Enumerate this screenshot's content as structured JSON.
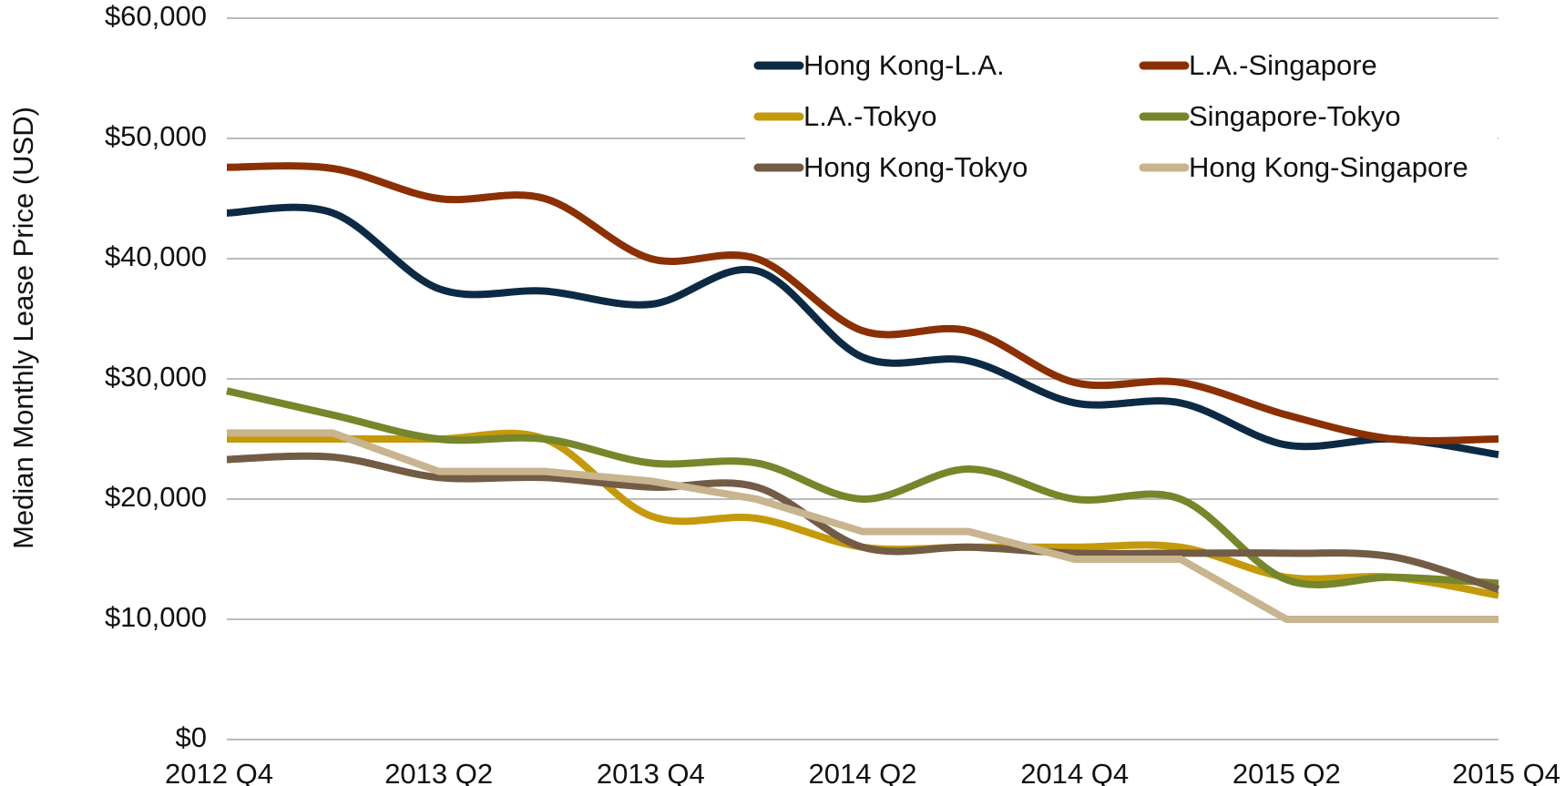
{
  "chart_data": {
    "type": "line",
    "y_label": "Median Monthly Lease Price (USD)",
    "categories": [
      "2012 Q4",
      null,
      "2013 Q2",
      null,
      "2013 Q4",
      null,
      "2014 Q2",
      null,
      "2014 Q4",
      null,
      "2015 Q2",
      null,
      "2015 Q4"
    ],
    "ylim": [
      0,
      60000
    ],
    "yticks": [
      {
        "value": 0,
        "label": "$0"
      },
      {
        "value": 10000,
        "label": "$10,000"
      },
      {
        "value": 20000,
        "label": "$20,000"
      },
      {
        "value": 30000,
        "label": "$30,000"
      },
      {
        "value": 40000,
        "label": "$40,000"
      },
      {
        "value": 50000,
        "label": "$50,000"
      },
      {
        "value": 60000,
        "label": "$60,000"
      }
    ],
    "grid": true,
    "legend": "upper right",
    "series": [
      {
        "name": "Hong Kong-L.A.",
        "color": "#0d2a45",
        "smooth": true,
        "values": [
          43800,
          43800,
          37500,
          37300,
          36200,
          39000,
          31800,
          31500,
          28000,
          28000,
          24500,
          25000,
          23700
        ]
      },
      {
        "name": "L.A.-Singapore",
        "color": "#8b3004",
        "smooth": true,
        "values": [
          47600,
          47500,
          45000,
          45000,
          40000,
          40000,
          34000,
          34000,
          29700,
          29700,
          27000,
          25000,
          25000
        ]
      },
      {
        "name": "L.A.-Tokyo",
        "color": "#c49a0c",
        "smooth": true,
        "values": [
          25000,
          25000,
          25000,
          25000,
          18600,
          18400,
          16000,
          16000,
          16000,
          16000,
          13500,
          13500,
          12000
        ]
      },
      {
        "name": "Singapore-Tokyo",
        "color": "#76862a",
        "smooth": true,
        "values": [
          29000,
          27000,
          25000,
          25000,
          23000,
          23000,
          20000,
          22500,
          20000,
          20000,
          13300,
          13500,
          13000
        ]
      },
      {
        "name": "Hong Kong-Tokyo",
        "color": "#735c45",
        "smooth": true,
        "values": [
          23300,
          23500,
          21800,
          21800,
          21000,
          21000,
          16000,
          16000,
          15500,
          15500,
          15500,
          15200,
          12500
        ]
      },
      {
        "name": "Hong Kong-Singapore",
        "color": "#c8b48e",
        "smooth": false,
        "values": [
          25500,
          25500,
          22300,
          22300,
          21500,
          20000,
          17300,
          17300,
          15000,
          15000,
          10000,
          10000,
          10000
        ]
      }
    ]
  }
}
